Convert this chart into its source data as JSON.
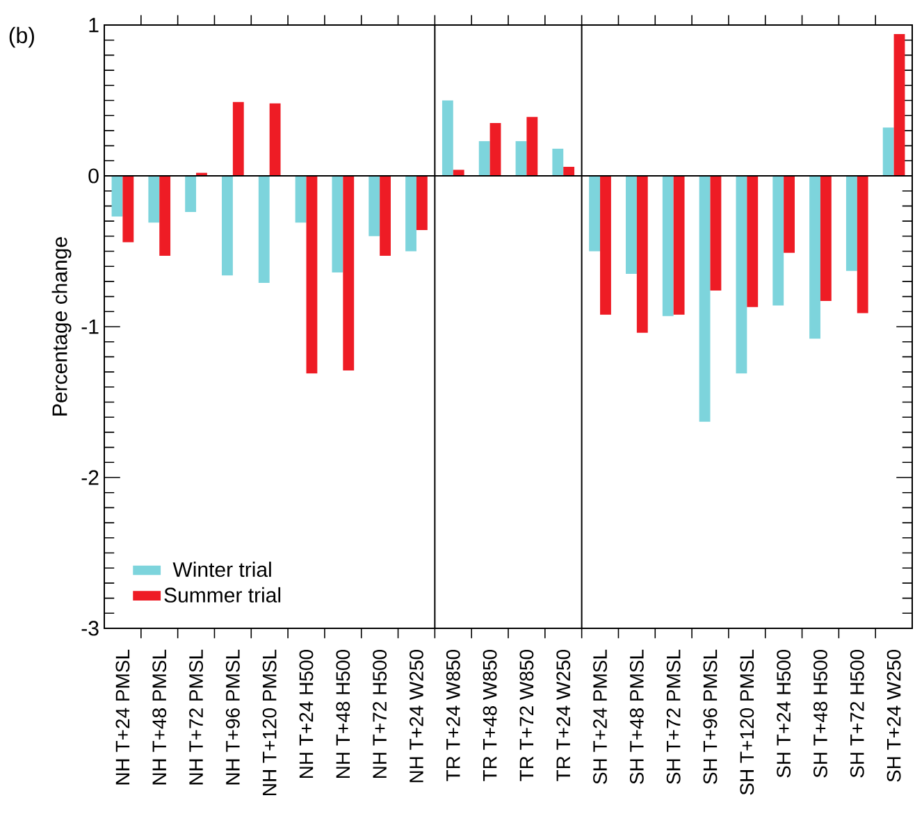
{
  "chart_data": {
    "type": "bar",
    "ylabel": "Percentage change",
    "annotations": [
      "(b)"
    ],
    "categories": [
      "NH T+24 PMSL",
      "NH T+48 PMSL",
      "NH T+72 PMSL",
      "NH T+96 PMSL",
      "NH T+120 PMSL",
      "NH T+24 H500",
      "NH T+48 H500",
      "NH T+72 H500",
      "NH T+24 W250",
      "TR T+24 W850",
      "TR T+48 W850",
      "TR T+72 W850",
      "TR T+24 W250",
      "SH T+24 PMSL",
      "SH T+48 PMSL",
      "SH T+72 PMSL",
      "SH T+96 PMSL",
      "SH T+120 PMSL",
      "SH T+24 H500",
      "SH T+48 H500",
      "SH T+72 H500",
      "SH T+24 W250"
    ],
    "series": [
      {
        "name": "Winter trial",
        "color": "#7dd4dc",
        "values": [
          -0.27,
          -0.31,
          -0.24,
          -0.66,
          -0.71,
          -0.31,
          -0.64,
          -0.4,
          -0.5,
          0.5,
          0.23,
          0.23,
          0.18,
          -0.5,
          -0.65,
          -0.93,
          -1.63,
          -1.31,
          -0.86,
          -1.08,
          -0.63,
          0.32
        ]
      },
      {
        "name": "Summer trial",
        "color": "#ee1c25",
        "values": [
          -0.44,
          -0.53,
          0.02,
          0.49,
          0.48,
          -1.31,
          -1.29,
          -0.53,
          -0.36,
          0.04,
          0.35,
          0.39,
          0.06,
          -0.92,
          -1.04,
          -0.92,
          -0.76,
          -0.87,
          -0.51,
          -0.83,
          -0.91,
          0.94
        ]
      }
    ],
    "ylim": [
      -3,
      1
    ],
    "yticks": [
      -3,
      -2,
      -1,
      0,
      1
    ],
    "ref_lines": [
      {
        "axis": "y",
        "value": 0
      }
    ],
    "legend": "bottom left",
    "grid": false
  }
}
